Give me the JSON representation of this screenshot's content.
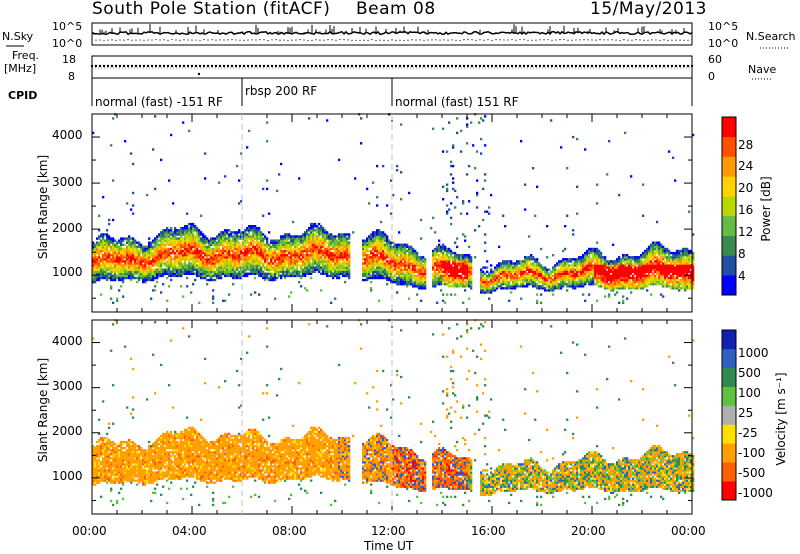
{
  "header": {
    "station": "South Pole Station (fitACF)",
    "beam": "Beam 08",
    "date": "15/May/2013"
  },
  "strip_labels": {
    "nsky": "N.Sky",
    "freq_top": "Freq.",
    "freq_unit": "[MHz]",
    "cpid": "CPID",
    "nsearch": "N.Search",
    "nave": "Nave",
    "nsky_top": "10^5",
    "nsky_bottom": "10^0",
    "freq_max": "18",
    "freq_min": "8",
    "nave_max": "60",
    "nave_min": "0",
    "nsearch_top": "10^5",
    "nsearch_bottom": "10^0"
  },
  "cpid_segments": [
    {
      "label": "normal (fast) -151 RF",
      "start": 0,
      "end": 6
    },
    {
      "label": "rbsp 200 RF",
      "start": 6,
      "end": 12
    },
    {
      "label": "normal (fast) 151 RF",
      "start": 12,
      "end": 24
    }
  ],
  "colors": {
    "power": [
      "#0000ff",
      "#2050a0",
      "#3a8a50",
      "#66bb44",
      "#b8d800",
      "#ffd200",
      "#ff9a00",
      "#ff5000",
      "#ff0000"
    ],
    "velocity": [
      "#1020b0",
      "#2e60c0",
      "#2e8c50",
      "#60c040",
      "#b0b0b0",
      "#ffe000",
      "#ffa000",
      "#ff6000",
      "#ff0000"
    ]
  },
  "chart_data": [
    {
      "type": "heatmap",
      "ylabel": "Slant Range [km]",
      "xlabel": "Time UT",
      "ylim": [
        200,
        4500
      ],
      "xlim": [
        0,
        24
      ],
      "x_ticks": [
        "00:00",
        "04:00",
        "08:00",
        "12:00",
        "16:00",
        "20:00",
        "00:00"
      ],
      "y_ticks": [
        1000,
        2000,
        3000,
        4000
      ],
      "colorbar_label": "Power [dB]",
      "colorbar_ticks": [
        "4",
        "8",
        "12",
        "16",
        "20",
        "24",
        "28"
      ],
      "color_range": [
        0,
        32
      ],
      "echo_band_km": [
        {
          "t": 0,
          "lo": 800,
          "hi": 1700
        },
        {
          "t": 2,
          "lo": 900,
          "hi": 1800
        },
        {
          "t": 4,
          "lo": 950,
          "hi": 2000
        },
        {
          "t": 6,
          "lo": 900,
          "hi": 1900
        },
        {
          "t": 8,
          "lo": 950,
          "hi": 1900
        },
        {
          "t": 10,
          "lo": 950,
          "hi": 1950
        },
        {
          "t": 12,
          "lo": 800,
          "hi": 1700
        },
        {
          "t": 14,
          "lo": 700,
          "hi": 1500
        },
        {
          "t": 16,
          "lo": 650,
          "hi": 1200
        },
        {
          "t": 18,
          "lo": 700,
          "hi": 1300
        },
        {
          "t": 20,
          "lo": 700,
          "hi": 1400
        },
        {
          "t": 22,
          "lo": 700,
          "hi": 1500
        },
        {
          "t": 24,
          "lo": 700,
          "hi": 1600
        }
      ]
    },
    {
      "type": "heatmap",
      "ylabel": "Slant Range [km]",
      "xlabel": "Time UT",
      "ylim": [
        200,
        4500
      ],
      "xlim": [
        0,
        24
      ],
      "x_ticks": [
        "00:00",
        "04:00",
        "08:00",
        "12:00",
        "16:00",
        "20:00",
        "00:00"
      ],
      "y_ticks": [
        1000,
        2000,
        3000,
        4000
      ],
      "colorbar_label": "Velocity [m s⁻¹]",
      "colorbar_ticks": [
        "1000",
        "500",
        "100",
        "25",
        "-25",
        "-100",
        "-500",
        "-1000"
      ],
      "color_range": [
        -1200,
        1200
      ]
    }
  ]
}
